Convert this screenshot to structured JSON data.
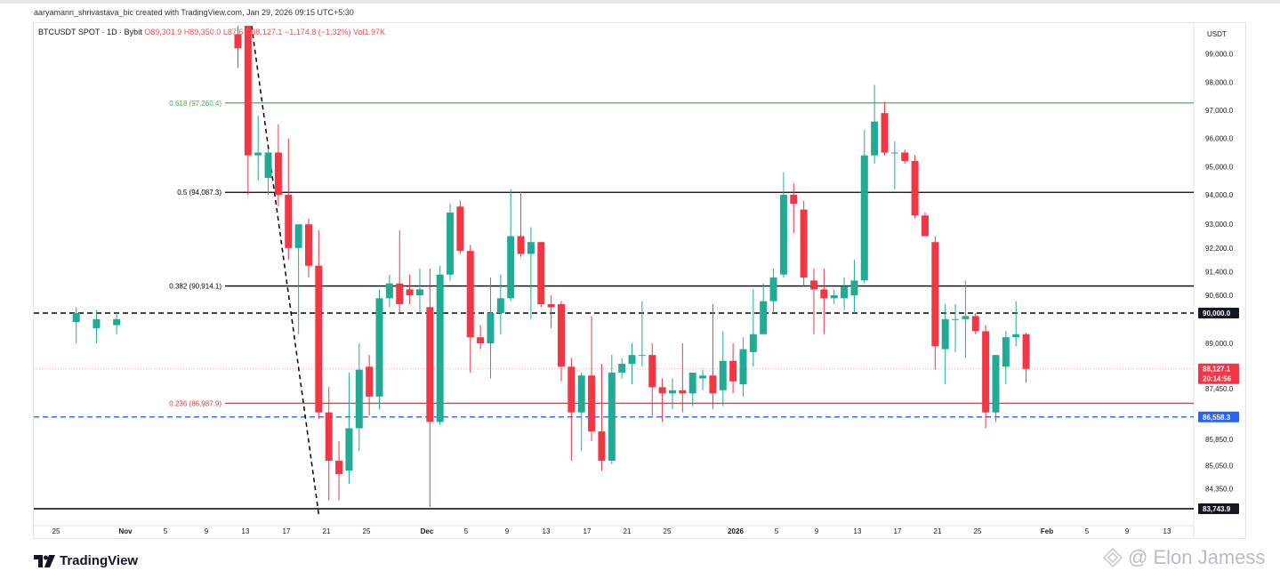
{
  "caption": "aaryamann_shrivastava_bic created with TradingView.com, Jan 29, 2026 09:15 UTC+5:30",
  "legend": {
    "symbol": "BTCUSDT SPOT · 1D · Bybit",
    "open": "O89,301.9",
    "high": "H89,350.0",
    "low": "L87,6",
    "close": "C88,127.1",
    "change": "−1,174.8 (−1.32%)",
    "volume": "Vol1.97K"
  },
  "currency_label": "USDT",
  "brand": "TradingView",
  "watermark": "@ Elon Jamess",
  "colors": {
    "up": "#22ab94",
    "down": "#f23645",
    "fib_green": "#4caf50",
    "fib_red": "#e53935",
    "blue": "#2962ff"
  },
  "chart_data": {
    "type": "candlestick",
    "symbol": "BTCUSDT",
    "timeframe": "1D",
    "x_tick_labels": [
      "25",
      "Nov",
      "5",
      "9",
      "13",
      "17",
      "21",
      "25",
      "Dec",
      "5",
      "9",
      "13",
      "17",
      "21",
      "25",
      "2026",
      "5",
      "9",
      "13",
      "17",
      "21",
      "25",
      "Feb",
      "5",
      "9",
      "13"
    ],
    "y_tick_labels": [
      "99,000.0",
      "98,000.0",
      "97,000.0",
      "96,000.0",
      "95,000.0",
      "94,000.0",
      "93,000.0",
      "92,200.0",
      "91,400.0",
      "90,600.0",
      "89,000.0",
      "87,450.0",
      "85,850.0",
      "85,050.0",
      "84,350.0"
    ],
    "price_tags": [
      {
        "label": "90,000.0",
        "value": 90000.0,
        "style": "dark"
      },
      {
        "label": "88,127.1",
        "value": 88127.1,
        "style": "red"
      },
      {
        "label": "20:14:56",
        "value": null,
        "style": "red"
      },
      {
        "label": "86,558.3",
        "value": 86558.3,
        "style": "blue"
      },
      {
        "label": "83,743.9",
        "value": 83743.9,
        "style": "dark"
      }
    ],
    "fib_levels": [
      {
        "label": "0.618 (97,260.4)",
        "value": 97260.4,
        "color": "#4caf50"
      },
      {
        "label": "0.5 (94,087.3)",
        "value": 94087.3,
        "color": "#000000"
      },
      {
        "label": "0.382 (90,914.1)",
        "value": 90914.1,
        "color": "#000000"
      },
      {
        "label": "0.236 (86,987.9)",
        "value": 86987.9,
        "color": "#e53935"
      }
    ],
    "horizontal_lines": [
      {
        "value": 90000.0,
        "style": "dashed",
        "color": "#000000"
      },
      {
        "value": 88127.1,
        "style": "dotted",
        "color": "#ef9a9a"
      },
      {
        "value": 86558.3,
        "style": "dashed",
        "color": "#2962ff"
      },
      {
        "value": 83743.9,
        "style": "solid",
        "color": "#000000"
      }
    ],
    "trend_line": {
      "from": [
        "2025-11-13",
        100000
      ],
      "to": [
        "2025-11-20",
        83700
      ],
      "style": "dashed"
    },
    "candles": [
      [
        "2025-10-27",
        89700,
        90200,
        89000,
        90000
      ],
      [
        "2025-10-29",
        89500,
        90100,
        89000,
        89800
      ],
      [
        "2025-10-31",
        89600,
        90000,
        89300,
        89800
      ],
      [
        "2025-11-12",
        99700,
        100000,
        98500,
        99200
      ],
      [
        "2025-11-13",
        100000,
        100000,
        94000,
        95400
      ],
      [
        "2025-11-14",
        95400,
        96800,
        94500,
        95500
      ],
      [
        "2025-11-15",
        94600,
        95600,
        94000,
        95500
      ],
      [
        "2025-11-16",
        95500,
        96500,
        93600,
        94000
      ],
      [
        "2025-11-17",
        94000,
        96000,
        91800,
        92200
      ],
      [
        "2025-11-18",
        92200,
        93000,
        89300,
        93000
      ],
      [
        "2025-11-19",
        93000,
        93200,
        91200,
        91600
      ],
      [
        "2025-11-20",
        91600,
        92800,
        86500,
        86700
      ],
      [
        "2025-11-21",
        86700,
        87500,
        84000,
        85200
      ],
      [
        "2025-11-22",
        85200,
        85800,
        84000,
        84800
      ],
      [
        "2025-11-23",
        84900,
        88000,
        84500,
        86200
      ],
      [
        "2025-11-24",
        86200,
        89000,
        85500,
        88100
      ],
      [
        "2025-11-25",
        88200,
        88600,
        86600,
        87200
      ],
      [
        "2025-11-26",
        87200,
        90800,
        86800,
        90500
      ],
      [
        "2025-11-27",
        90500,
        91300,
        90200,
        91000
      ],
      [
        "2025-11-28",
        91000,
        92800,
        90000,
        90300
      ],
      [
        "2025-11-29",
        90800,
        91300,
        90300,
        90600
      ],
      [
        "2025-11-30",
        90600,
        91500,
        90000,
        90800
      ],
      [
        "2025-12-01",
        90200,
        91500,
        83800,
        86400
      ],
      [
        "2025-12-02",
        86400,
        91600,
        86300,
        91300
      ],
      [
        "2025-12-03",
        91300,
        93700,
        91100,
        93400
      ],
      [
        "2025-12-04",
        93600,
        93800,
        92000,
        92100
      ],
      [
        "2025-12-05",
        92100,
        92300,
        88000,
        89200
      ],
      [
        "2025-12-06",
        89200,
        89600,
        88800,
        89000
      ],
      [
        "2025-12-07",
        89000,
        91200,
        87800,
        90000
      ],
      [
        "2025-12-08",
        90000,
        91300,
        89300,
        90500
      ],
      [
        "2025-12-09",
        90500,
        94200,
        90400,
        92600
      ],
      [
        "2025-12-10",
        92600,
        94100,
        91900,
        92000
      ],
      [
        "2025-12-11",
        92000,
        92900,
        89800,
        92400
      ],
      [
        "2025-12-12",
        92400,
        92400,
        90200,
        90300
      ],
      [
        "2025-12-13",
        90300,
        90600,
        89500,
        90200
      ],
      [
        "2025-12-14",
        90300,
        90400,
        87700,
        88200
      ],
      [
        "2025-12-15",
        88200,
        88500,
        85200,
        86700
      ],
      [
        "2025-12-16",
        86700,
        88000,
        85500,
        87900
      ],
      [
        "2025-12-17",
        87900,
        89900,
        85800,
        86100
      ],
      [
        "2025-12-18",
        86100,
        88300,
        84900,
        85200
      ],
      [
        "2025-12-19",
        85200,
        88600,
        85100,
        88000
      ],
      [
        "2025-12-20",
        88000,
        88500,
        87800,
        88300
      ],
      [
        "2025-12-21",
        88300,
        89000,
        87600,
        88600
      ],
      [
        "2025-12-22",
        88600,
        90400,
        88200,
        88600
      ],
      [
        "2025-12-23",
        88600,
        89000,
        86600,
        87500
      ],
      [
        "2025-12-24",
        87500,
        87800,
        86400,
        87300
      ],
      [
        "2025-12-25",
        87300,
        87800,
        86800,
        87400
      ],
      [
        "2025-12-26",
        87400,
        89000,
        86700,
        87300
      ],
      [
        "2025-12-27",
        87300,
        87900,
        86900,
        88000
      ],
      [
        "2025-12-28",
        87800,
        88100,
        87400,
        87900
      ],
      [
        "2025-12-29",
        87900,
        90300,
        86800,
        87300
      ],
      [
        "2025-12-30",
        87400,
        89400,
        86900,
        88400
      ],
      [
        "2025-12-31",
        88400,
        89000,
        87300,
        87700
      ],
      [
        "2026-01-01",
        87600,
        89200,
        87200,
        88800
      ],
      [
        "2026-01-02",
        88700,
        90800,
        88200,
        89300
      ],
      [
        "2026-01-03",
        89300,
        91000,
        89300,
        90400
      ],
      [
        "2026-01-04",
        90400,
        91500,
        90000,
        91200
      ],
      [
        "2026-01-05",
        91300,
        94800,
        91200,
        94000
      ],
      [
        "2026-01-06",
        94000,
        94400,
        92700,
        93700
      ],
      [
        "2026-01-07",
        93500,
        93800,
        90900,
        91200
      ],
      [
        "2026-01-08",
        91100,
        91500,
        89300,
        90800
      ],
      [
        "2026-01-09",
        90800,
        91500,
        89300,
        90500
      ],
      [
        "2026-01-10",
        90500,
        90800,
        90300,
        90600
      ],
      [
        "2026-01-11",
        90500,
        91200,
        90100,
        90900
      ],
      [
        "2026-01-12",
        90600,
        91800,
        90000,
        91100
      ],
      [
        "2026-01-13",
        91100,
        96300,
        91000,
        95400
      ],
      [
        "2026-01-14",
        95400,
        97900,
        95100,
        96600
      ],
      [
        "2026-01-15",
        96900,
        97300,
        95400,
        95500
      ],
      [
        "2026-01-16",
        95500,
        95900,
        94200,
        95500
      ],
      [
        "2026-01-17",
        95500,
        95600,
        95100,
        95200
      ],
      [
        "2026-01-18",
        95200,
        95400,
        93200,
        93300
      ],
      [
        "2026-01-19",
        93300,
        93400,
        92700,
        92600
      ],
      [
        "2026-01-20",
        92400,
        92600,
        88100,
        88900
      ],
      [
        "2026-01-21",
        88800,
        90300,
        87600,
        89800
      ],
      [
        "2026-01-22",
        89800,
        90300,
        88700,
        89800
      ],
      [
        "2026-01-23",
        89800,
        91100,
        88500,
        89900
      ],
      [
        "2026-01-24",
        89900,
        90000,
        89300,
        89400
      ],
      [
        "2026-01-25",
        89400,
        89600,
        86200,
        86700
      ],
      [
        "2026-01-26",
        86700,
        88600,
        86400,
        88600
      ],
      [
        "2026-01-27",
        88200,
        89400,
        87600,
        89200
      ],
      [
        "2026-01-28",
        89200,
        90400,
        88900,
        89300
      ],
      [
        "2026-01-29",
        89302,
        89350,
        87650,
        88127
      ]
    ]
  }
}
